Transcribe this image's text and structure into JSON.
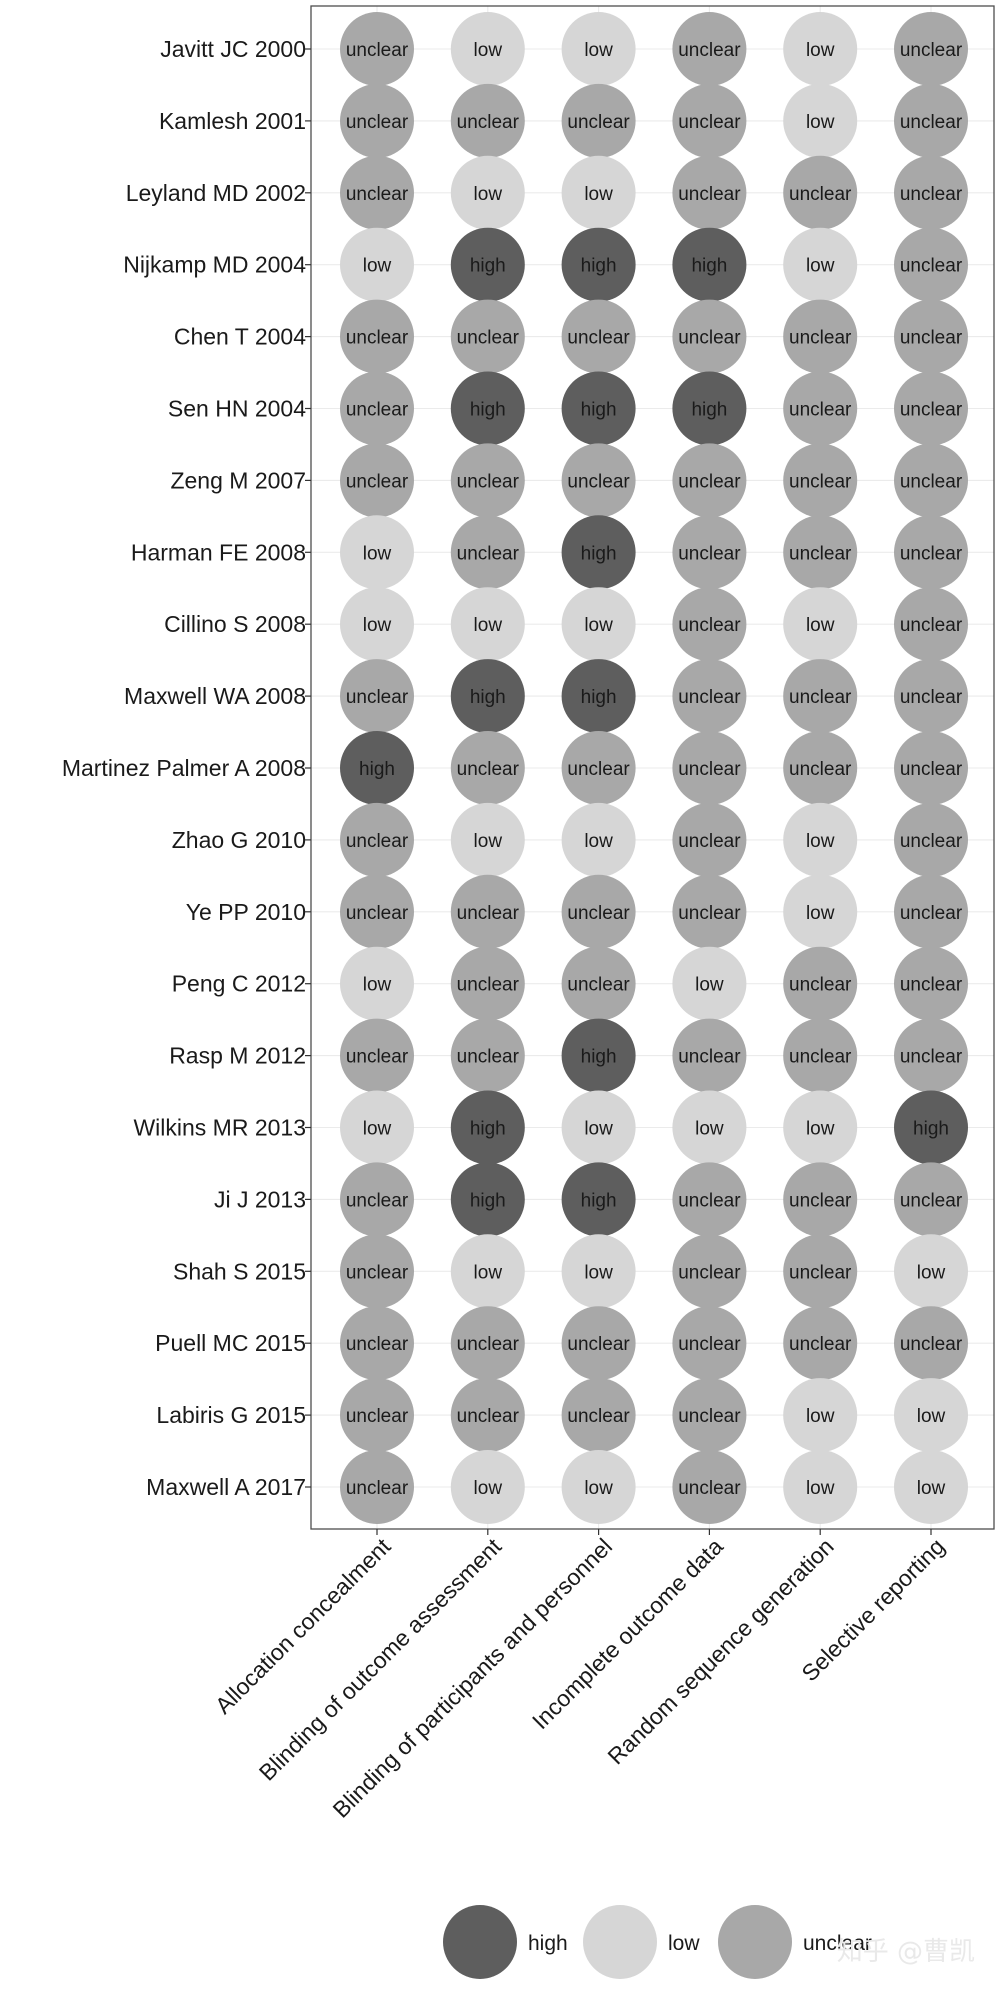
{
  "chart_data": {
    "type": "table",
    "title": "",
    "studies": [
      "Javitt JC 2000",
      "Kamlesh 2001",
      "Leyland MD 2002",
      "Nijkamp MD 2004",
      "Chen T 2004",
      "Sen HN 2004",
      "Zeng M 2007",
      "Harman FE 2008",
      "Cillino S 2008",
      "Maxwell WA 2008",
      "Martinez Palmer A 2008",
      "Zhao G 2010",
      "Ye PP 2010",
      "Peng C 2012",
      "Rasp M 2012",
      "Wilkins MR 2013",
      "Ji J 2013",
      "Shah S 2015",
      "Puell MC 2015",
      "Labiris G 2015",
      "Maxwell A 2017"
    ],
    "domains": [
      "Allocation concealment",
      "Blinding of outcome assessment",
      "Blinding of participants and personnel",
      "Incomplete outcome data",
      "Random sequence generation",
      "Selective reporting"
    ],
    "ratings": [
      [
        "unclear",
        "low",
        "low",
        "unclear",
        "low",
        "unclear"
      ],
      [
        "unclear",
        "unclear",
        "unclear",
        "unclear",
        "low",
        "unclear"
      ],
      [
        "unclear",
        "low",
        "low",
        "unclear",
        "unclear",
        "unclear"
      ],
      [
        "low",
        "high",
        "high",
        "high",
        "low",
        "unclear"
      ],
      [
        "unclear",
        "unclear",
        "unclear",
        "unclear",
        "unclear",
        "unclear"
      ],
      [
        "unclear",
        "high",
        "high",
        "high",
        "unclear",
        "unclear"
      ],
      [
        "unclear",
        "unclear",
        "unclear",
        "unclear",
        "unclear",
        "unclear"
      ],
      [
        "low",
        "unclear",
        "high",
        "unclear",
        "unclear",
        "unclear"
      ],
      [
        "low",
        "low",
        "low",
        "unclear",
        "low",
        "unclear"
      ],
      [
        "unclear",
        "high",
        "high",
        "unclear",
        "unclear",
        "unclear"
      ],
      [
        "high",
        "unclear",
        "unclear",
        "unclear",
        "unclear",
        "unclear"
      ],
      [
        "unclear",
        "low",
        "low",
        "unclear",
        "low",
        "unclear"
      ],
      [
        "unclear",
        "unclear",
        "unclear",
        "unclear",
        "low",
        "unclear"
      ],
      [
        "low",
        "unclear",
        "unclear",
        "low",
        "unclear",
        "unclear"
      ],
      [
        "unclear",
        "unclear",
        "high",
        "unclear",
        "unclear",
        "unclear"
      ],
      [
        "low",
        "high",
        "low",
        "low",
        "low",
        "high"
      ],
      [
        "unclear",
        "high",
        "high",
        "unclear",
        "unclear",
        "unclear"
      ],
      [
        "unclear",
        "low",
        "low",
        "unclear",
        "unclear",
        "low"
      ],
      [
        "unclear",
        "unclear",
        "unclear",
        "unclear",
        "unclear",
        "unclear"
      ],
      [
        "unclear",
        "unclear",
        "unclear",
        "unclear",
        "low",
        "low"
      ],
      [
        "unclear",
        "low",
        "low",
        "unclear",
        "low",
        "low"
      ]
    ],
    "legend": [
      {
        "label": "high",
        "color": "#5e5e5e"
      },
      {
        "label": "low",
        "color": "#d6d6d6"
      },
      {
        "label": "unclear",
        "color": "#a8a8a8"
      }
    ],
    "legend_position": "bottom",
    "grid": true
  },
  "watermark": "知乎 @曹凯"
}
